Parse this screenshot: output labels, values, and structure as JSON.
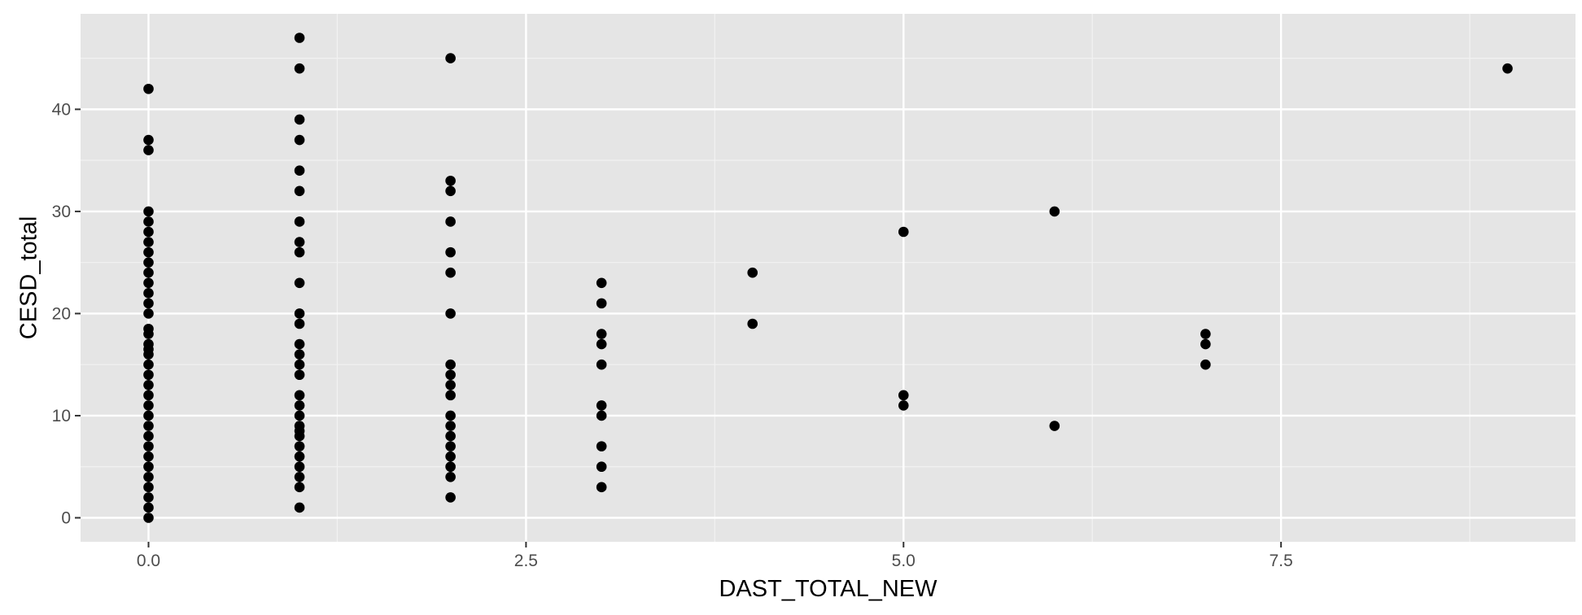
{
  "chart_data": {
    "type": "scatter",
    "title": "",
    "xlabel": "DAST_TOTAL_NEW",
    "ylabel": "CESD_total",
    "xlim": [
      -0.45,
      9.45
    ],
    "ylim": [
      -2.35,
      49.35
    ],
    "x_ticks": [
      0,
      2.5,
      5,
      7.5
    ],
    "x_tick_labels": [
      "0.0",
      "2.5",
      "5.0",
      "7.5"
    ],
    "x_minor_ticks": [
      1.25,
      3.75,
      6.25,
      8.75
    ],
    "y_ticks": [
      0,
      10,
      20,
      30,
      40
    ],
    "y_tick_labels": [
      "0",
      "10",
      "20",
      "30",
      "40"
    ],
    "y_minor_ticks": [
      5,
      15,
      25,
      35,
      45
    ],
    "grid": true,
    "colors": {
      "panel": "#e5e5e5",
      "grid_major": "#ffffff",
      "grid_minor": "#f2f2f2",
      "point": "#000000",
      "tick": "#333333"
    },
    "points": [
      {
        "x": 0,
        "y": 0
      },
      {
        "x": 0,
        "y": 1
      },
      {
        "x": 0,
        "y": 2
      },
      {
        "x": 0,
        "y": 3
      },
      {
        "x": 0,
        "y": 4
      },
      {
        "x": 0,
        "y": 5
      },
      {
        "x": 0,
        "y": 6
      },
      {
        "x": 0,
        "y": 7
      },
      {
        "x": 0,
        "y": 8
      },
      {
        "x": 0,
        "y": 9
      },
      {
        "x": 0,
        "y": 10
      },
      {
        "x": 0,
        "y": 11
      },
      {
        "x": 0,
        "y": 12
      },
      {
        "x": 0,
        "y": 13
      },
      {
        "x": 0,
        "y": 14
      },
      {
        "x": 0,
        "y": 15
      },
      {
        "x": 0,
        "y": 16
      },
      {
        "x": 0,
        "y": 16.5
      },
      {
        "x": 0,
        "y": 17
      },
      {
        "x": 0,
        "y": 18
      },
      {
        "x": 0,
        "y": 18.5
      },
      {
        "x": 0,
        "y": 20
      },
      {
        "x": 0,
        "y": 21
      },
      {
        "x": 0,
        "y": 22
      },
      {
        "x": 0,
        "y": 23
      },
      {
        "x": 0,
        "y": 24
      },
      {
        "x": 0,
        "y": 25
      },
      {
        "x": 0,
        "y": 26
      },
      {
        "x": 0,
        "y": 27
      },
      {
        "x": 0,
        "y": 28
      },
      {
        "x": 0,
        "y": 29
      },
      {
        "x": 0,
        "y": 30
      },
      {
        "x": 0,
        "y": 36
      },
      {
        "x": 0,
        "y": 37
      },
      {
        "x": 0,
        "y": 42
      },
      {
        "x": 1,
        "y": 1
      },
      {
        "x": 1,
        "y": 3
      },
      {
        "x": 1,
        "y": 4
      },
      {
        "x": 1,
        "y": 5
      },
      {
        "x": 1,
        "y": 6
      },
      {
        "x": 1,
        "y": 7
      },
      {
        "x": 1,
        "y": 8
      },
      {
        "x": 1,
        "y": 8.5
      },
      {
        "x": 1,
        "y": 9
      },
      {
        "x": 1,
        "y": 10
      },
      {
        "x": 1,
        "y": 11
      },
      {
        "x": 1,
        "y": 12
      },
      {
        "x": 1,
        "y": 14
      },
      {
        "x": 1,
        "y": 15
      },
      {
        "x": 1,
        "y": 16
      },
      {
        "x": 1,
        "y": 17
      },
      {
        "x": 1,
        "y": 19
      },
      {
        "x": 1,
        "y": 20
      },
      {
        "x": 1,
        "y": 23
      },
      {
        "x": 1,
        "y": 26
      },
      {
        "x": 1,
        "y": 27
      },
      {
        "x": 1,
        "y": 29
      },
      {
        "x": 1,
        "y": 32
      },
      {
        "x": 1,
        "y": 34
      },
      {
        "x": 1,
        "y": 37
      },
      {
        "x": 1,
        "y": 39
      },
      {
        "x": 1,
        "y": 44
      },
      {
        "x": 1,
        "y": 47
      },
      {
        "x": 2,
        "y": 2
      },
      {
        "x": 2,
        "y": 4
      },
      {
        "x": 2,
        "y": 5
      },
      {
        "x": 2,
        "y": 6
      },
      {
        "x": 2,
        "y": 7
      },
      {
        "x": 2,
        "y": 8
      },
      {
        "x": 2,
        "y": 9
      },
      {
        "x": 2,
        "y": 10
      },
      {
        "x": 2,
        "y": 12
      },
      {
        "x": 2,
        "y": 13
      },
      {
        "x": 2,
        "y": 14
      },
      {
        "x": 2,
        "y": 15
      },
      {
        "x": 2,
        "y": 20
      },
      {
        "x": 2,
        "y": 24
      },
      {
        "x": 2,
        "y": 26
      },
      {
        "x": 2,
        "y": 29
      },
      {
        "x": 2,
        "y": 32
      },
      {
        "x": 2,
        "y": 33
      },
      {
        "x": 2,
        "y": 45
      },
      {
        "x": 3,
        "y": 3
      },
      {
        "x": 3,
        "y": 5
      },
      {
        "x": 3,
        "y": 7
      },
      {
        "x": 3,
        "y": 10
      },
      {
        "x": 3,
        "y": 11
      },
      {
        "x": 3,
        "y": 15
      },
      {
        "x": 3,
        "y": 17
      },
      {
        "x": 3,
        "y": 18
      },
      {
        "x": 3,
        "y": 21
      },
      {
        "x": 3,
        "y": 23
      },
      {
        "x": 4,
        "y": 19
      },
      {
        "x": 4,
        "y": 24
      },
      {
        "x": 5,
        "y": 11
      },
      {
        "x": 5,
        "y": 12
      },
      {
        "x": 5,
        "y": 28
      },
      {
        "x": 6,
        "y": 9
      },
      {
        "x": 6,
        "y": 30
      },
      {
        "x": 7,
        "y": 15
      },
      {
        "x": 7,
        "y": 17
      },
      {
        "x": 7,
        "y": 18
      },
      {
        "x": 9,
        "y": 44
      }
    ]
  }
}
